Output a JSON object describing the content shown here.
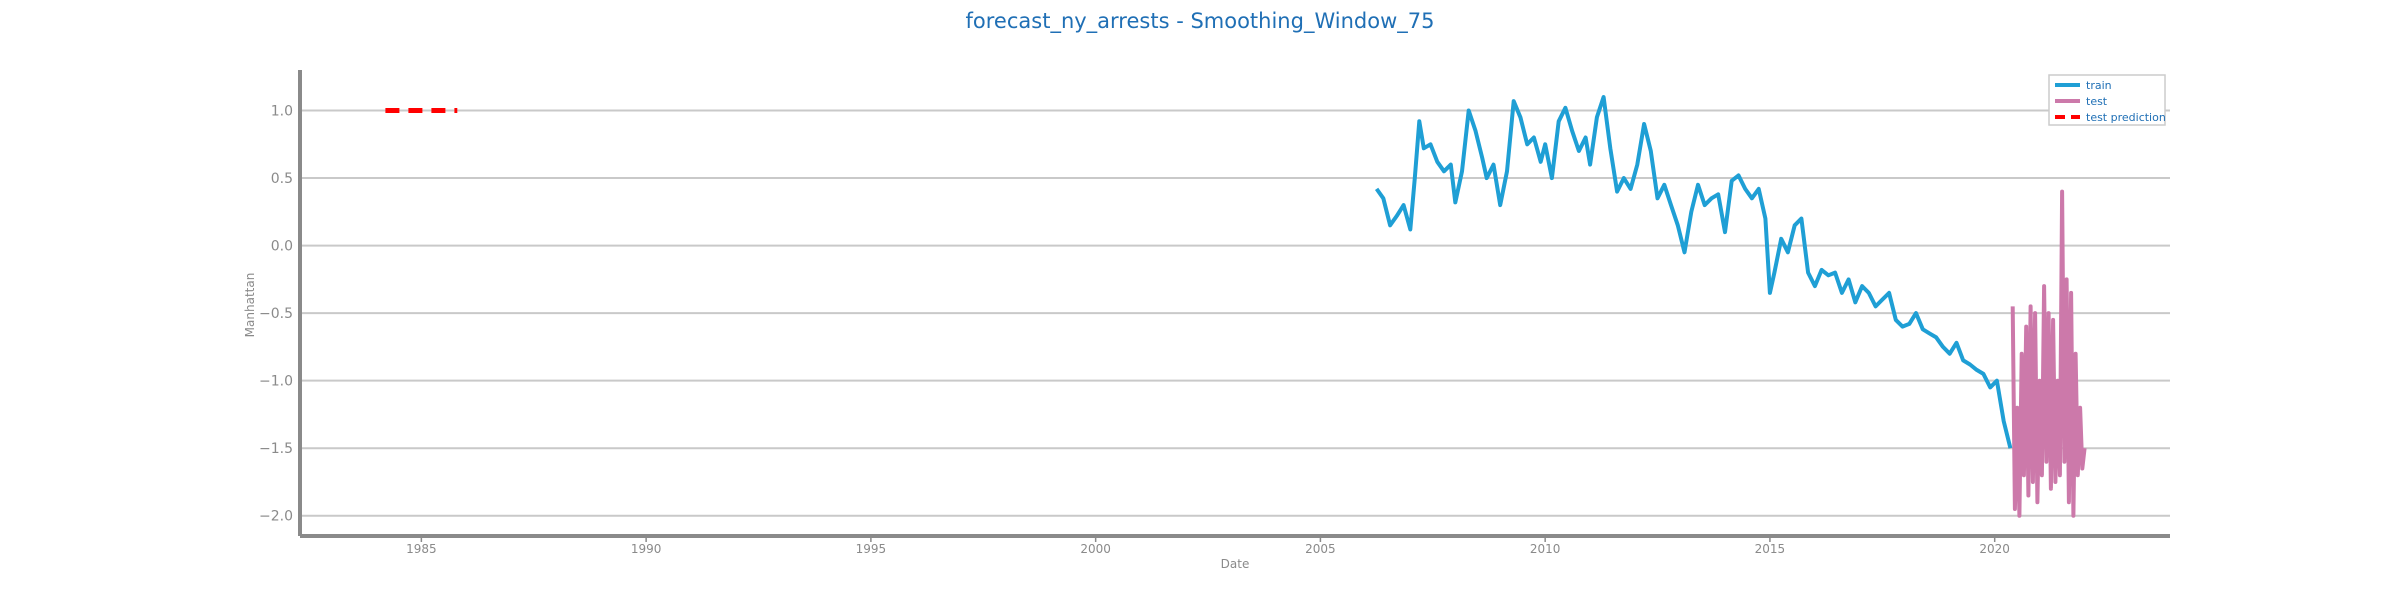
{
  "chart_data": {
    "type": "line",
    "title": "forecast_ny_arrests - Smoothing_Window_75",
    "xlabel": "Date",
    "ylabel": "Manhattan",
    "xlim": [
      1982.3,
      2023.9
    ],
    "ylim": [
      -2.15,
      1.3
    ],
    "x_ticks": [
      1985,
      1990,
      1995,
      2000,
      2005,
      2010,
      2015,
      2020
    ],
    "y_ticks": [
      1.0,
      0.5,
      0.0,
      -0.5,
      -1.0,
      -1.5,
      -2.0
    ],
    "y_tick_labels": [
      "1.0",
      "0.5",
      "0.0",
      "−0.5",
      "−1.0",
      "−1.5",
      "−2.0"
    ],
    "grid": "horizontal",
    "legend_position": "top-right",
    "series": [
      {
        "name": "train",
        "color": "#1f9fd5",
        "style": "solid",
        "x": [
          2006.25,
          2006.4,
          2006.55,
          2006.7,
          2006.85,
          2007.0,
          2007.1,
          2007.2,
          2007.3,
          2007.45,
          2007.6,
          2007.75,
          2007.9,
          2008.0,
          2008.15,
          2008.3,
          2008.45,
          2008.6,
          2008.7,
          2008.85,
          2009.0,
          2009.15,
          2009.3,
          2009.45,
          2009.6,
          2009.75,
          2009.9,
          2010.0,
          2010.15,
          2010.3,
          2010.45,
          2010.6,
          2010.75,
          2010.9,
          2011.0,
          2011.15,
          2011.3,
          2011.45,
          2011.6,
          2011.75,
          2011.9,
          2012.05,
          2012.2,
          2012.35,
          2012.5,
          2012.65,
          2012.8,
          2012.95,
          2013.1,
          2013.25,
          2013.4,
          2013.55,
          2013.7,
          2013.85,
          2014.0,
          2014.15,
          2014.3,
          2014.45,
          2014.6,
          2014.75,
          2014.9,
          2015.0,
          2015.1,
          2015.25,
          2015.4,
          2015.55,
          2015.7,
          2015.85,
          2016.0,
          2016.15,
          2016.3,
          2016.45,
          2016.6,
          2016.75,
          2016.9,
          2017.05,
          2017.2,
          2017.35,
          2017.5,
          2017.65,
          2017.8,
          2017.95,
          2018.1,
          2018.25,
          2018.4,
          2018.55,
          2018.7,
          2018.85,
          2019.0,
          2019.15,
          2019.3,
          2019.45,
          2019.6,
          2019.75,
          2019.9,
          2020.05,
          2020.2,
          2020.35
        ],
        "values": [
          0.42,
          0.35,
          0.15,
          0.22,
          0.3,
          0.12,
          0.5,
          0.92,
          0.72,
          0.75,
          0.62,
          0.55,
          0.6,
          0.32,
          0.55,
          1.0,
          0.85,
          0.65,
          0.5,
          0.6,
          0.3,
          0.55,
          1.07,
          0.95,
          0.75,
          0.8,
          0.62,
          0.75,
          0.5,
          0.92,
          1.02,
          0.85,
          0.7,
          0.8,
          0.6,
          0.95,
          1.1,
          0.72,
          0.4,
          0.5,
          0.42,
          0.6,
          0.9,
          0.7,
          0.35,
          0.45,
          0.3,
          0.15,
          -0.05,
          0.25,
          0.45,
          0.3,
          0.35,
          0.38,
          0.1,
          0.48,
          0.52,
          0.42,
          0.35,
          0.42,
          0.2,
          -0.35,
          -0.2,
          0.05,
          -0.05,
          0.15,
          0.2,
          -0.2,
          -0.3,
          -0.18,
          -0.22,
          -0.2,
          -0.35,
          -0.25,
          -0.42,
          -0.3,
          -0.35,
          -0.45,
          -0.4,
          -0.35,
          -0.55,
          -0.6,
          -0.58,
          -0.5,
          -0.62,
          -0.65,
          -0.68,
          -0.75,
          -0.8,
          -0.72,
          -0.85,
          -0.88,
          -0.92,
          -0.95,
          -1.05,
          -1.0,
          -1.3,
          -1.5
        ]
      },
      {
        "name": "test",
        "color": "#cc79aa",
        "style": "solid",
        "x": [
          2020.4,
          2020.45,
          2020.5,
          2020.55,
          2020.6,
          2020.65,
          2020.7,
          2020.75,
          2020.8,
          2020.85,
          2020.9,
          2020.95,
          2021.0,
          2021.05,
          2021.1,
          2021.15,
          2021.2,
          2021.25,
          2021.3,
          2021.35,
          2021.4,
          2021.45,
          2021.5,
          2021.55,
          2021.6,
          2021.65,
          2021.7,
          2021.75,
          2021.8,
          2021.85,
          2021.9,
          2021.95,
          2022.0
        ],
        "values": [
          -0.45,
          -1.95,
          -1.2,
          -2.0,
          -0.8,
          -1.7,
          -0.6,
          -1.85,
          -0.45,
          -1.75,
          -0.5,
          -1.9,
          -1.0,
          -1.7,
          -0.3,
          -1.6,
          -0.5,
          -1.8,
          -0.55,
          -1.75,
          -1.0,
          -1.7,
          0.4,
          -1.6,
          -0.25,
          -1.9,
          -0.35,
          -2.0,
          -0.8,
          -1.7,
          -1.2,
          -1.65,
          -1.5
        ]
      },
      {
        "name": "test prediction",
        "color": "#ff0000",
        "style": "dashed",
        "x": [
          1984.2,
          1985.8
        ],
        "values": [
          1.0,
          1.0
        ]
      }
    ]
  }
}
